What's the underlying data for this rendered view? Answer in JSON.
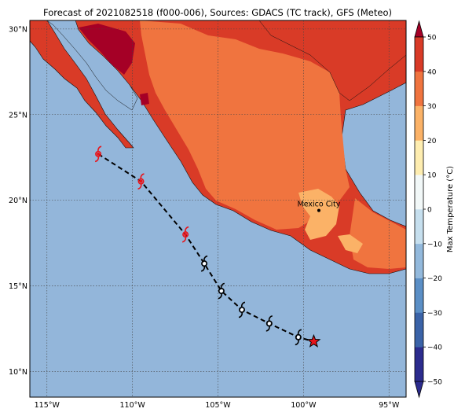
{
  "title": "Forecast of 2021082518 (f000-006), Sources: GDACS (TC track), GFS (Meteo)",
  "colorbar": {
    "label": "Max Temperature (°C)",
    "ticks": [
      "−50",
      "−40",
      "−30",
      "−20",
      "−10",
      "0",
      "10",
      "20",
      "30",
      "40",
      "50"
    ],
    "levels": [
      {
        "from": -50,
        "to": -40,
        "color": "#2c2c8e"
      },
      {
        "from": -40,
        "to": -30,
        "color": "#3b63a8"
      },
      {
        "from": -30,
        "to": -20,
        "color": "#5b8fc6"
      },
      {
        "from": -20,
        "to": -10,
        "color": "#93b9dc"
      },
      {
        "from": -10,
        "to": 0,
        "color": "#c6dfee"
      },
      {
        "from": 0,
        "to": 10,
        "color": "#f2f8f8"
      },
      {
        "from": 10,
        "to": 20,
        "color": "#feedb0"
      },
      {
        "from": 20,
        "to": 30,
        "color": "#fbb267"
      },
      {
        "from": 30,
        "to": 40,
        "color": "#f0743f"
      },
      {
        "from": 40,
        "to": 50,
        "color": "#d93b27"
      },
      {
        "from": 50,
        "to": 60,
        "color": "#a50026"
      }
    ]
  },
  "map": {
    "lon_range": [
      -116,
      -94
    ],
    "lat_range": [
      8.5,
      30.5
    ],
    "lon_ticks": [
      {
        "value": -115,
        "label": "115°W"
      },
      {
        "value": -110,
        "label": "110°W"
      },
      {
        "value": -105,
        "label": "105°W"
      },
      {
        "value": -100,
        "label": "100°W"
      },
      {
        "value": -95,
        "label": "95°W"
      }
    ],
    "lat_ticks": [
      {
        "value": 10,
        "label": "10°N"
      },
      {
        "value": 15,
        "label": "15°N"
      },
      {
        "value": 20,
        "label": "20°N"
      },
      {
        "value": 25,
        "label": "25°N"
      },
      {
        "value": 30,
        "label": "30°N"
      }
    ],
    "ocean_color": "#93b6da"
  },
  "city": {
    "name": "Mexico City",
    "lon": -99.1,
    "lat": 19.4
  },
  "track": {
    "points": [
      {
        "lon": -112.0,
        "lat": 22.7,
        "type": "past"
      },
      {
        "lon": -109.5,
        "lat": 21.1,
        "type": "past"
      },
      {
        "lon": -106.9,
        "lat": 18.0,
        "type": "past"
      },
      {
        "lon": -105.8,
        "lat": 16.3,
        "type": "forecast"
      },
      {
        "lon": -104.8,
        "lat": 14.7,
        "type": "forecast"
      },
      {
        "lon": -103.6,
        "lat": 13.6,
        "type": "forecast"
      },
      {
        "lon": -102.0,
        "lat": 12.8,
        "type": "forecast"
      },
      {
        "lon": -100.3,
        "lat": 12.0,
        "type": "forecast"
      }
    ],
    "current_position": {
      "lon": -99.4,
      "lat": 11.75
    },
    "past_color": "#e8141a",
    "forecast_color": "#ffffff",
    "line_color": "#000000"
  }
}
